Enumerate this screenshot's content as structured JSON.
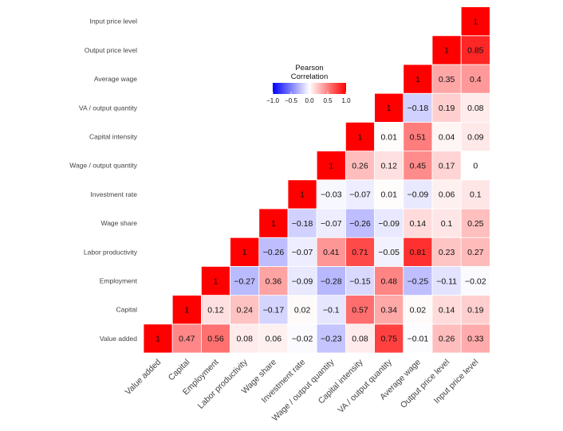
{
  "chart_data": {
    "type": "heatmap",
    "title": "",
    "xlabel": "",
    "ylabel": "",
    "variables": [
      "Value added",
      "Capital",
      "Employment",
      "Labor productivity",
      "Wage share",
      "Investment rate",
      "Wage / output quantity",
      "Capital intensity",
      "VA / output quantity",
      "Average wage",
      "Output price level",
      "Input price level"
    ],
    "matrix": [
      [
        1,
        0.47,
        0.56,
        0.08,
        0.06,
        -0.02,
        -0.23,
        0.08,
        0.75,
        -0.01,
        0.26,
        0.33
      ],
      [
        null,
        1,
        0.12,
        0.24,
        -0.17,
        0.02,
        -0.1,
        0.57,
        0.34,
        0.02,
        0.14,
        0.19
      ],
      [
        null,
        null,
        1,
        -0.27,
        0.36,
        -0.09,
        -0.28,
        -0.15,
        0.48,
        -0.25,
        -0.11,
        -0.02
      ],
      [
        null,
        null,
        null,
        1,
        -0.26,
        -0.07,
        0.41,
        0.71,
        -0.05,
        0.81,
        0.23,
        0.27
      ],
      [
        null,
        null,
        null,
        null,
        1,
        -0.18,
        -0.07,
        -0.26,
        -0.09,
        0.14,
        0.1,
        0.25
      ],
      [
        null,
        null,
        null,
        null,
        null,
        1,
        -0.03,
        -0.07,
        0.01,
        -0.09,
        0.06,
        0.1
      ],
      [
        null,
        null,
        null,
        null,
        null,
        null,
        1,
        0.26,
        0.12,
        0.45,
        0.17,
        0
      ],
      [
        null,
        null,
        null,
        null,
        null,
        null,
        null,
        1,
        0.01,
        0.51,
        0.04,
        0.09
      ],
      [
        null,
        null,
        null,
        null,
        null,
        null,
        null,
        null,
        1,
        -0.18,
        0.19,
        0.08
      ],
      [
        null,
        null,
        null,
        null,
        null,
        null,
        null,
        null,
        null,
        1,
        0.35,
        0.4
      ],
      [
        null,
        null,
        null,
        null,
        null,
        null,
        null,
        null,
        null,
        null,
        1,
        0.85
      ],
      [
        null,
        null,
        null,
        null,
        null,
        null,
        null,
        null,
        null,
        null,
        null,
        1
      ]
    ],
    "legend": {
      "title_line1": "Pearson",
      "title_line2": "Correlation",
      "range": [
        -1,
        1
      ],
      "ticks": [
        -1,
        -0.5,
        0,
        0.5,
        1
      ],
      "tick_labels": [
        "−1.0",
        "−0.5",
        "0.0",
        "0.5",
        "1.0"
      ],
      "colors": {
        "low": "#0000ff",
        "mid": "#ffffff",
        "high": "#ff0000"
      },
      "placement": "top-center"
    },
    "label_format": "minus sign rendered as −"
  }
}
